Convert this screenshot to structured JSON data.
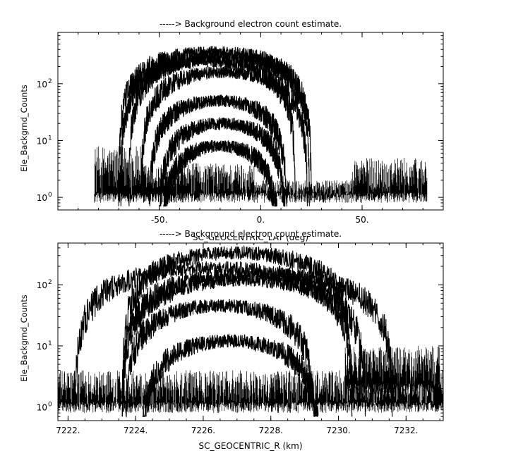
{
  "chart_data": [
    {
      "type": "line",
      "title": "-----> Background electron count estimate.",
      "xlabel": "SC_GEOCENTRIC_LAT (deg)",
      "ylabel": "Ele_Backgrnd_Counts",
      "yscale": "log",
      "xlim": [
        -100,
        90
      ],
      "ylim": [
        0.6,
        800
      ],
      "xtick_values": [
        -50,
        0,
        50
      ],
      "xtick_labels": [
        "-50.",
        "0.",
        "50."
      ],
      "ytick_values": [
        1,
        10,
        100
      ],
      "ytick_labels": [
        "10",
        "10",
        "10"
      ],
      "ytick_exponents": [
        "0",
        "1",
        "2"
      ],
      "grid": false,
      "color": "#000000",
      "noise_segments": [
        {
          "x": [
            -82,
            -58
          ],
          "floor": 1,
          "ceiling": 8
        },
        {
          "x": [
            -58,
            -3
          ],
          "floor": 1,
          "ceiling": 4
        },
        {
          "x": [
            -3,
            45
          ],
          "floor": 1,
          "ceiling": 2
        },
        {
          "x": [
            45,
            82
          ],
          "floor": 1,
          "ceiling": 5
        }
      ],
      "series": [
        {
          "center": -23,
          "halfwidth": 47,
          "peak": 360
        },
        {
          "center": -20,
          "halfwidth": 45,
          "peak": 300
        },
        {
          "center": -26,
          "halfwidth": 43,
          "peak": 250
        },
        {
          "center": -18,
          "halfwidth": 41,
          "peak": 160
        },
        {
          "center": -21,
          "halfwidth": 34,
          "peak": 50
        },
        {
          "center": -19,
          "halfwidth": 31,
          "peak": 20
        },
        {
          "center": -20,
          "halfwidth": 28,
          "peak": 8
        }
      ]
    },
    {
      "type": "line",
      "title": "-----> Background electron count estimate.",
      "xlabel": "SC_GEOCENTRIC_R (km)",
      "ylabel": "Ele_Backgrnd_Counts",
      "yscale": "log",
      "xlim": [
        7221.7,
        7233.1
      ],
      "ylim": [
        0.6,
        480
      ],
      "xtick_values": [
        7222,
        7224,
        7226,
        7228,
        7230,
        7232
      ],
      "xtick_labels": [
        "7222.",
        "7224.",
        "7226.",
        "7228.",
        "7230.",
        "7232."
      ],
      "ytick_values": [
        1,
        10,
        100
      ],
      "ytick_labels": [
        "10",
        "10",
        "10"
      ],
      "ytick_exponents": [
        "0",
        "1",
        "2"
      ],
      "grid": false,
      "color": "#000000",
      "noise_segments": [
        {
          "x": [
            7221.7,
            7233.1
          ],
          "floor": 1,
          "ceiling": 4
        },
        {
          "x": [
            7230.2,
            7233.0
          ],
          "floor": 2,
          "ceiling": 10
        }
      ],
      "series": [
        {
          "center": 7227.0,
          "halfwidth": 3.4,
          "peak": 330
        },
        {
          "center": 7226.3,
          "halfwidth": 4.1,
          "peak": 190
        },
        {
          "center": 7227.6,
          "halfwidth": 4.0,
          "peak": 150
        },
        {
          "center": 7227.2,
          "halfwidth": 3.6,
          "peak": 120
        },
        {
          "center": 7226.5,
          "halfwidth": 2.8,
          "peak": 45
        },
        {
          "center": 7226.8,
          "halfwidth": 2.6,
          "peak": 12
        }
      ]
    }
  ]
}
